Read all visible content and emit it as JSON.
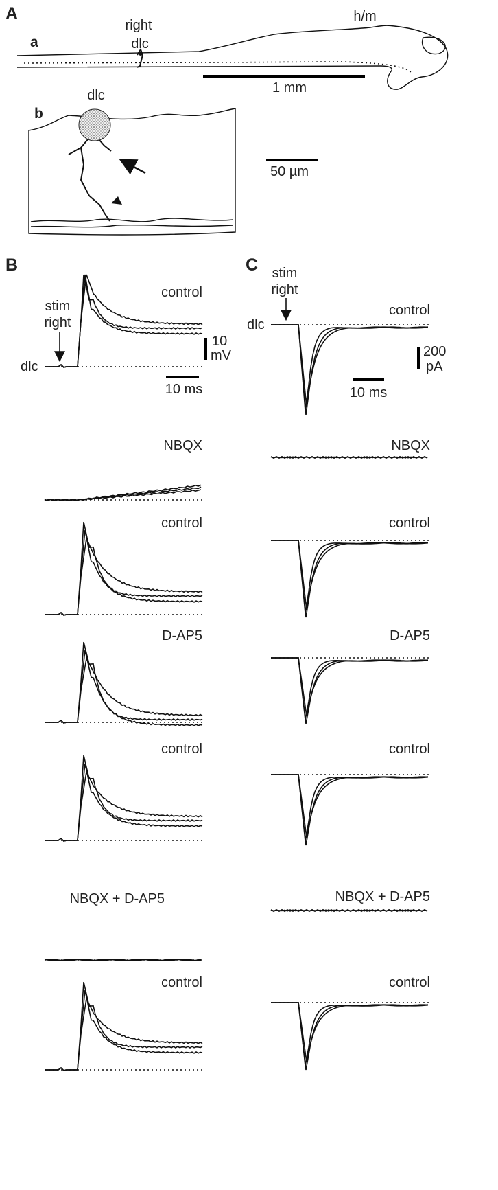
{
  "panel_a": {
    "label": "A",
    "sub_a": {
      "label": "a",
      "right": "right",
      "dlc": "dlc",
      "hm": "h/m",
      "scale": "1 mm"
    },
    "sub_b": {
      "label": "b",
      "dlc": "dlc",
      "scale": "50 µm"
    }
  },
  "panel_b": {
    "label": "B",
    "stim": "stim",
    "right": "right",
    "dlc": "dlc",
    "scale_v": "10",
    "scale_v_unit": "mV",
    "scale_h": "10 ms",
    "conditions": [
      "control",
      "NBQX",
      "control",
      "D-AP5",
      "control",
      "NBQX + D-AP5",
      "control"
    ]
  },
  "panel_c": {
    "label": "C",
    "stim": "stim",
    "right": "right",
    "dlc": "dlc",
    "scale_v": "200",
    "scale_v_unit": "pA",
    "scale_h": "10 ms",
    "conditions": [
      "control",
      "NBQX",
      "control",
      "D-AP5",
      "control",
      "NBQX + D-AP5",
      "control"
    ]
  }
}
